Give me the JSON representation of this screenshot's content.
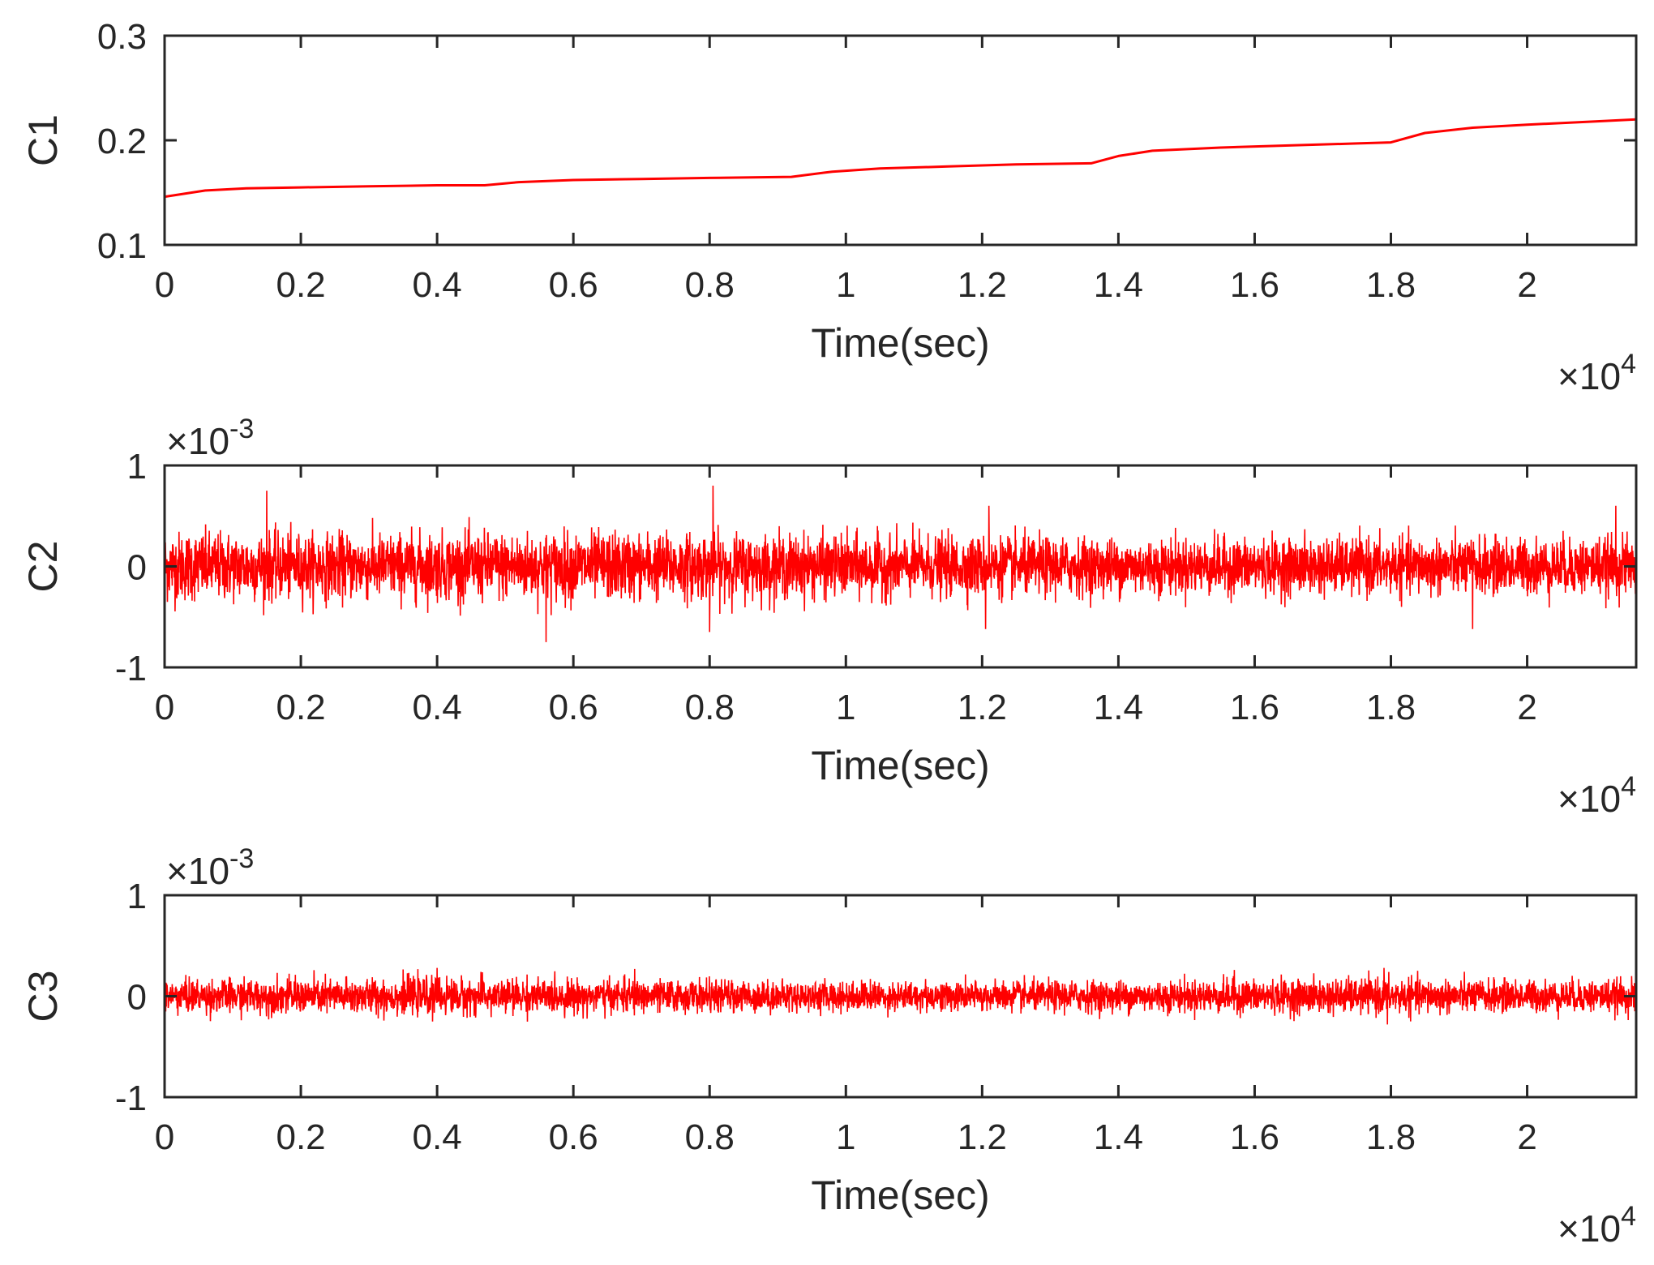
{
  "chart_data": [
    {
      "type": "line",
      "ylabel": "C1",
      "xlabel": "Time(sec)",
      "x_multiplier": "×10",
      "x_multiplier_exp": "4",
      "y_multiplier": "",
      "y_multiplier_exp": "",
      "xlim": [
        0,
        21600
      ],
      "ylim": [
        0.1,
        0.3
      ],
      "xticks": [
        0,
        2000,
        4000,
        6000,
        8000,
        10000,
        12000,
        14000,
        16000,
        18000,
        20000
      ],
      "xtick_labels": [
        "0",
        "0.2",
        "0.4",
        "0.6",
        "0.8",
        "1",
        "1.2",
        "1.4",
        "1.6",
        "1.8",
        "2"
      ],
      "yticks": [
        0.1,
        0.2,
        0.3
      ],
      "ytick_labels": [
        "0.1",
        "0.2",
        "0.3"
      ],
      "grid": false,
      "line_color": "#ff0000",
      "series": [
        {
          "x": [
            0,
            600,
            1200,
            2000,
            3000,
            4000,
            4700,
            5200,
            6000,
            7000,
            8000,
            9200,
            9800,
            10500,
            11500,
            12500,
            13600,
            14000,
            14500,
            15500,
            16500,
            17500,
            18000,
            18500,
            19200,
            20000,
            21000,
            21600
          ],
          "y": [
            0.146,
            0.152,
            0.154,
            0.155,
            0.156,
            0.157,
            0.157,
            0.16,
            0.162,
            0.163,
            0.164,
            0.165,
            0.17,
            0.173,
            0.175,
            0.177,
            0.178,
            0.185,
            0.19,
            0.193,
            0.195,
            0.197,
            0.198,
            0.207,
            0.212,
            0.215,
            0.218,
            0.22
          ]
        }
      ]
    },
    {
      "type": "line",
      "ylabel": "C2",
      "xlabel": "Time(sec)",
      "x_multiplier": "×10",
      "x_multiplier_exp": "4",
      "y_multiplier": "×10",
      "y_multiplier_exp": "-3",
      "xlim": [
        0,
        21600
      ],
      "ylim": [
        -1,
        1
      ],
      "xticks": [
        0,
        2000,
        4000,
        6000,
        8000,
        10000,
        12000,
        14000,
        16000,
        18000,
        20000
      ],
      "xtick_labels": [
        "0",
        "0.2",
        "0.4",
        "0.6",
        "0.8",
        "1",
        "1.2",
        "1.4",
        "1.6",
        "1.8",
        "2"
      ],
      "yticks": [
        -1,
        0,
        1
      ],
      "ytick_labels": [
        "-1",
        "0",
        "1"
      ],
      "grid": false,
      "line_color": "#ff0000",
      "signal": "noise",
      "amplitude_envelope": {
        "x": [
          0,
          2000,
          4000,
          6000,
          8000,
          10000,
          12000,
          14000,
          16000,
          18000,
          20000,
          21600
        ],
        "typical": [
          0.38,
          0.35,
          0.36,
          0.37,
          0.35,
          0.33,
          0.32,
          0.3,
          0.3,
          0.3,
          0.3,
          0.31
        ]
      },
      "spikes": [
        {
          "x": 1500,
          "y": 0.75
        },
        {
          "x": 5600,
          "y": -0.75
        },
        {
          "x": 8050,
          "y": 0.8
        },
        {
          "x": 8000,
          "y": -0.65
        },
        {
          "x": 12100,
          "y": 0.6
        },
        {
          "x": 12050,
          "y": -0.62
        },
        {
          "x": 19200,
          "y": -0.62
        },
        {
          "x": 21300,
          "y": 0.6
        }
      ]
    },
    {
      "type": "line",
      "ylabel": "C3",
      "xlabel": "Time(sec)",
      "x_multiplier": "×10",
      "x_multiplier_exp": "4",
      "y_multiplier": "×10",
      "y_multiplier_exp": "-3",
      "xlim": [
        0,
        21600
      ],
      "ylim": [
        -1,
        1
      ],
      "xticks": [
        0,
        2000,
        4000,
        6000,
        8000,
        10000,
        12000,
        14000,
        16000,
        18000,
        20000
      ],
      "xtick_labels": [
        "0",
        "0.2",
        "0.4",
        "0.6",
        "0.8",
        "1",
        "1.2",
        "1.4",
        "1.6",
        "1.8",
        "2"
      ],
      "yticks": [
        -1,
        0,
        1
      ],
      "ytick_labels": [
        "-1",
        "0",
        "1"
      ],
      "grid": false,
      "line_color": "#ff0000",
      "signal": "noise",
      "amplitude_envelope": {
        "x": [
          0,
          2000,
          4000,
          6000,
          8000,
          10000,
          12000,
          14000,
          16000,
          18000,
          20000,
          21600
        ],
        "typical": [
          0.18,
          0.19,
          0.2,
          0.18,
          0.17,
          0.16,
          0.16,
          0.17,
          0.18,
          0.19,
          0.17,
          0.18
        ]
      },
      "spikes": [
        {
          "x": 4000,
          "y": 0.28
        },
        {
          "x": 6900,
          "y": 0.27
        },
        {
          "x": 15700,
          "y": 0.26
        },
        {
          "x": 17900,
          "y": 0.28
        },
        {
          "x": 17950,
          "y": -0.28
        }
      ]
    }
  ]
}
